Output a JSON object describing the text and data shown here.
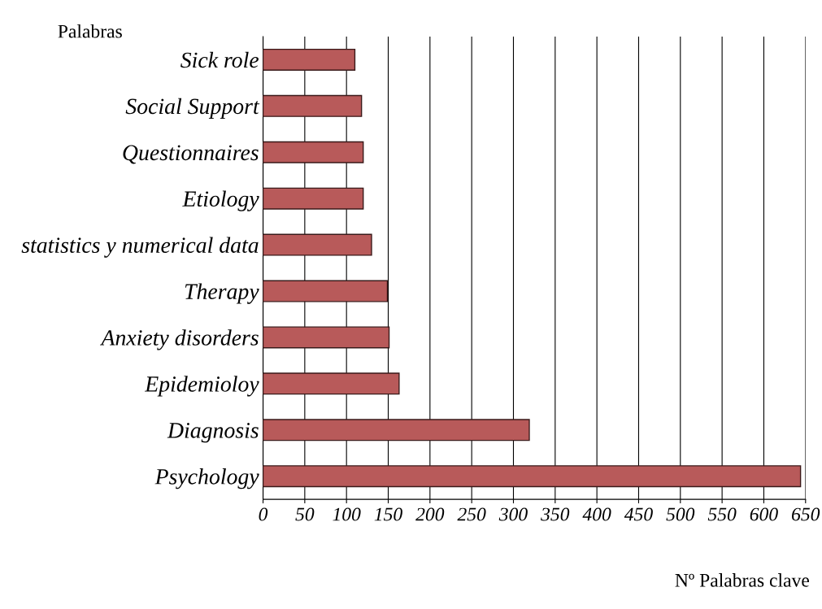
{
  "chart_data": {
    "type": "bar",
    "orientation": "horizontal",
    "ylabel": "Palabras",
    "xlabel": "Nº Palabras clave",
    "categories": [
      "Sick role",
      "Social Support",
      "Questionnaires",
      "Etiology",
      "statistics y numerical data",
      "Therapy",
      "Anxiety disorders",
      "Epidemioloy",
      "Diagnosis",
      "Psychology"
    ],
    "values": [
      110,
      118,
      120,
      120,
      130,
      149,
      151,
      163,
      319,
      644
    ],
    "color": "#b85a5a",
    "xlim": [
      0,
      650
    ],
    "xticks": [
      0,
      50,
      100,
      150,
      200,
      250,
      300,
      350,
      400,
      450,
      500,
      550,
      600,
      650
    ],
    "grid": "x"
  }
}
